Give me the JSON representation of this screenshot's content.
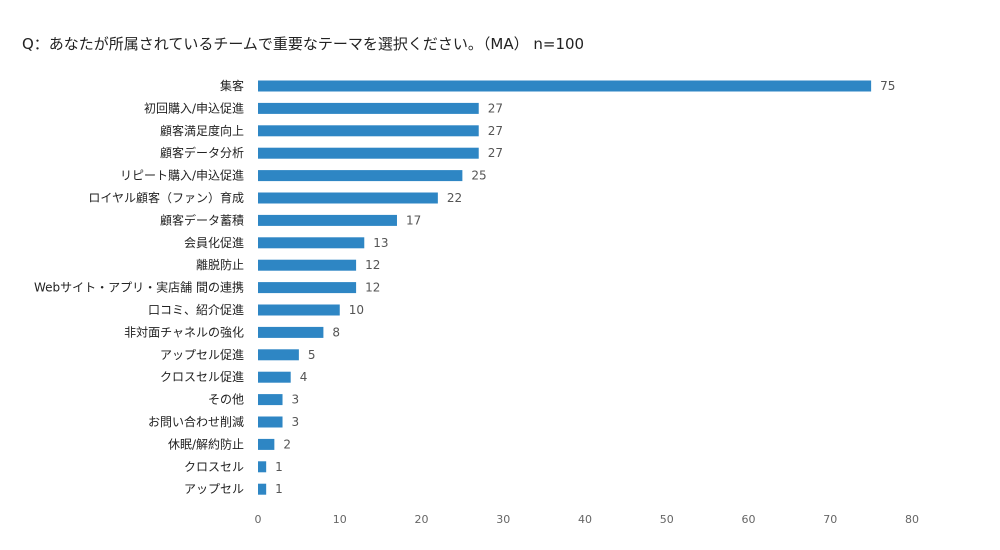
{
  "chart_data": {
    "type": "bar",
    "orientation": "horizontal",
    "title": "Q：あなたが所属されているチームで重要なテーマを選択ください。（MA） n=100",
    "categories": [
      "集客",
      "初回購入/申込促進",
      "顧客満足度向上",
      "顧客データ分析",
      "リピート購入/申込促進",
      "ロイヤル顧客（ファン）育成",
      "顧客データ蓄積",
      "会員化促進",
      "離脱防止",
      "Webサイト・アプリ・実店舗 間の連携",
      "口コミ、紹介促進",
      "非対面チャネルの強化",
      "アップセル促進",
      "クロスセル促進",
      "その他",
      "お問い合わせ削減",
      "休眠/解約防止",
      "クロスセル",
      "アップセル"
    ],
    "values": [
      75,
      27,
      27,
      27,
      25,
      22,
      17,
      13,
      12,
      12,
      10,
      8,
      5,
      4,
      3,
      3,
      2,
      1,
      1
    ],
    "xlim": [
      0,
      80
    ],
    "xticks": [
      "0",
      "10",
      "20",
      "30",
      "40",
      "50",
      "60",
      "70",
      "80"
    ],
    "grid": false,
    "legend": "none",
    "bar_color": "#2e86c4"
  }
}
